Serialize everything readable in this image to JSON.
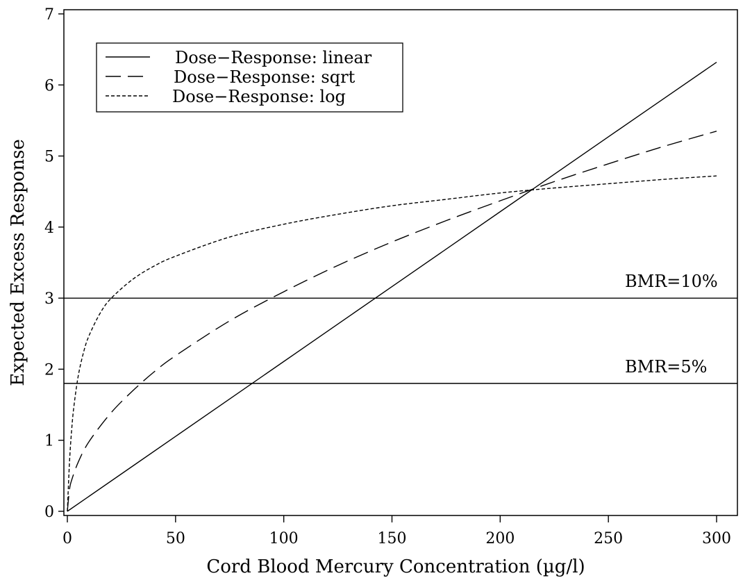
{
  "chart_data": {
    "type": "line",
    "xlabel": "Cord Blood Mercury Concentration (µg/l)",
    "ylabel": "Expected Excess Response",
    "xlim": [
      0,
      300
    ],
    "ylim": [
      0,
      7
    ],
    "x_ticks": [
      0,
      50,
      100,
      150,
      200,
      250,
      300
    ],
    "y_ticks": [
      0,
      1,
      2,
      3,
      4,
      5,
      6,
      7
    ],
    "x_tick_labels": [
      "0",
      "50",
      "100",
      "150",
      "200",
      "250",
      "300"
    ],
    "y_tick_labels": [
      "0",
      "1",
      "2",
      "3",
      "4",
      "5",
      "6",
      "7"
    ],
    "grid": false,
    "legend_position": "top-left",
    "series": [
      {
        "name": "Dose−Response: linear",
        "dash": "solid",
        "x": [
          0,
          50,
          100,
          150,
          200,
          250,
          300
        ],
        "y": [
          0,
          1.054,
          2.108,
          3.162,
          4.216,
          5.27,
          6.32
        ]
      },
      {
        "name": "Dose−Response: sqrt",
        "dash": "long-dash",
        "x": [
          0,
          1,
          2,
          5,
          10,
          20,
          30,
          40,
          50,
          75,
          100,
          125,
          150,
          175,
          200,
          225,
          250,
          275,
          300
        ],
        "y": [
          0,
          0.31,
          0.44,
          0.69,
          0.98,
          1.38,
          1.69,
          1.96,
          2.19,
          2.68,
          3.09,
          3.46,
          3.79,
          4.09,
          4.37,
          4.64,
          4.89,
          5.13,
          5.35
        ]
      },
      {
        "name": "Dose−Response: log",
        "dash": "short-dash",
        "x": [
          0,
          1,
          2,
          3,
          5,
          7.5,
          10,
          15,
          20,
          30,
          40,
          50,
          75,
          100,
          125,
          150,
          175,
          200,
          225,
          250,
          275,
          300
        ],
        "y": [
          0,
          0.7,
          1.15,
          1.47,
          1.9,
          2.24,
          2.47,
          2.78,
          2.99,
          3.26,
          3.45,
          3.59,
          3.86,
          4.04,
          4.18,
          4.3,
          4.39,
          4.48,
          4.55,
          4.61,
          4.67,
          4.72
        ]
      }
    ],
    "reference_lines": [
      {
        "label": "BMR=10%",
        "y": 3.0
      },
      {
        "label": "BMR=5%",
        "y": 1.8
      }
    ]
  }
}
